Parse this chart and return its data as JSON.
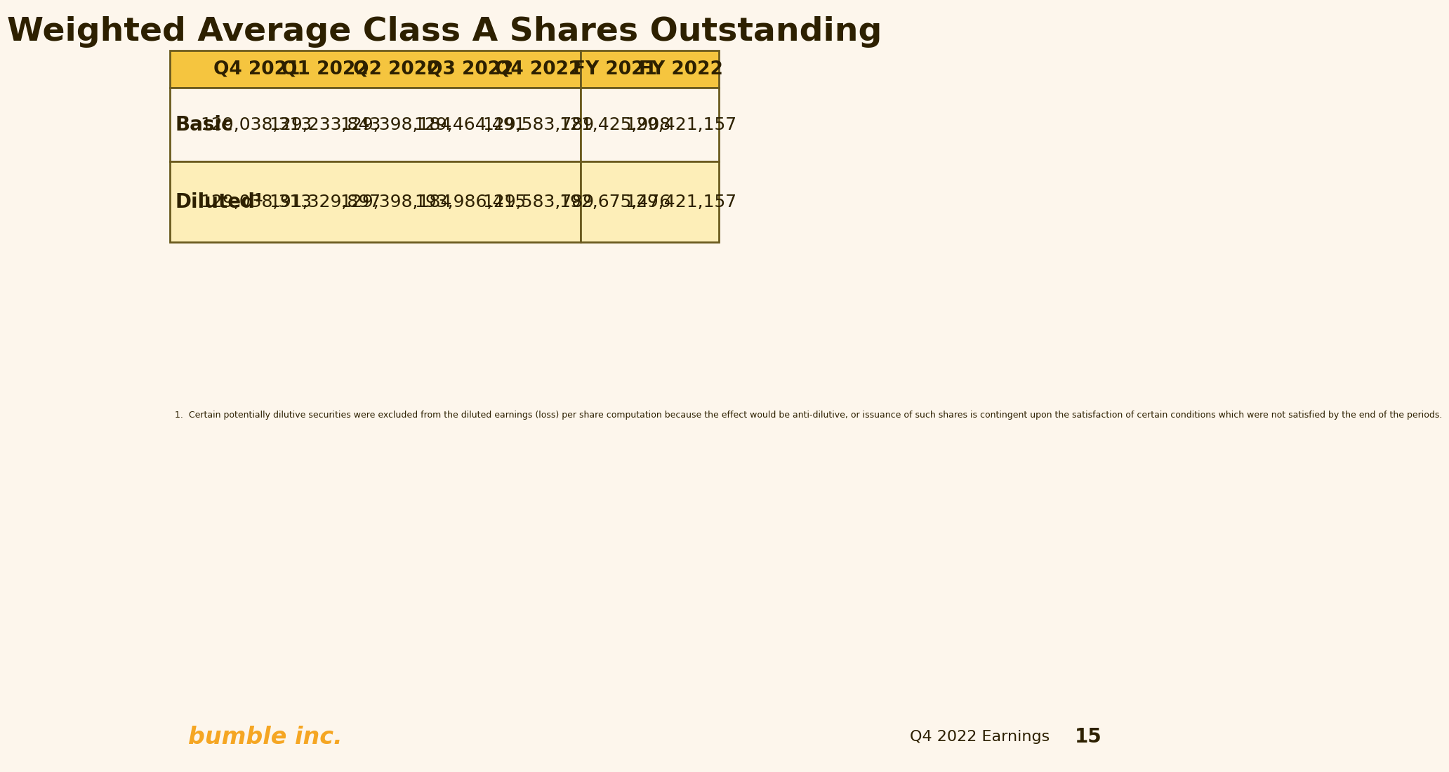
{
  "title": "Weighted Average Class A Shares Outstanding",
  "background_color": "#FDF6EC",
  "header_bg_color": "#F5C53F",
  "row1_bg_left": "#FDF6EC",
  "row1_bg_right": "#FDF6EC",
  "row2_bg_left": "#FDEEB8",
  "row2_bg_right": "#FDEEB8",
  "border_color": "#6B5A1E",
  "text_color": "#2D2000",
  "columns": [
    "Q4 2021",
    "Q1 2022",
    "Q2 2022",
    "Q3 2022",
    "Q4 2022",
    "FY 2021",
    "FY 2022"
  ],
  "rows": [
    {
      "label": "Basic",
      "values": [
        "129,038,313",
        "129,233,843",
        "129,398,184",
        "129,464,491",
        "129,583,789",
        "121,425,908",
        "129,421,157"
      ]
    },
    {
      "label": "Diluted¹",
      "values": [
        "129,038,313",
        "191,329,897",
        "129,398,184",
        "193,986,415",
        "129,583,789",
        "192,675,476",
        "129,421,157"
      ]
    }
  ],
  "footnote": "1.  Certain potentially dilutive securities were excluded from the diluted earnings (loss) per share computation because the effect would be anti-dilutive, or issuance of such shares is contingent upon the satisfaction of certain conditions which were not satisfied by the end of the periods.",
  "footer_left": "bumble inc.",
  "footer_right": "Q4 2022 Earnings",
  "footer_page": "15",
  "bumble_color": "#F5A623",
  "title_fontsize": 34,
  "header_fontsize": 19,
  "data_fontsize": 18,
  "label_fontsize": 20,
  "footnote_fontsize": 9,
  "footer_fontsize": 16,
  "page_fontsize": 20
}
